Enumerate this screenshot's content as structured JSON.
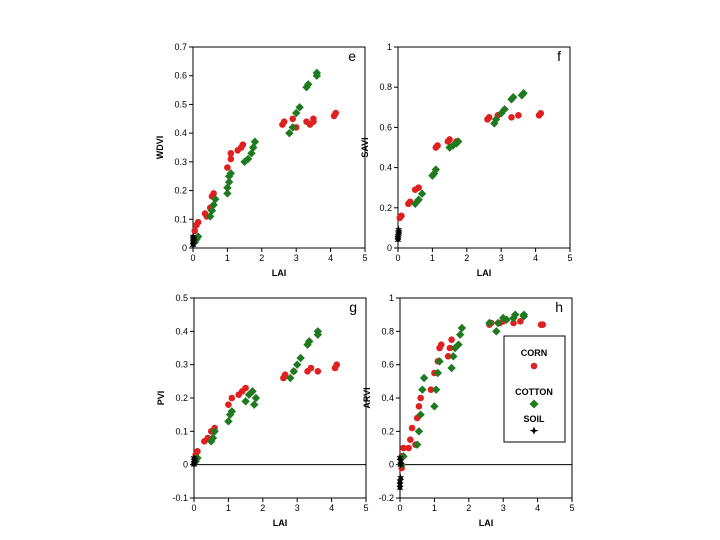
{
  "colors": {
    "corn": "#e02020",
    "cotton": "#1f7a1f",
    "soil": "#000000",
    "axis": "#000000"
  },
  "legend": {
    "corn": "CORN",
    "cotton": "COTTON",
    "soil": "SOIL"
  },
  "chart_data": [
    {
      "type": "scatter",
      "panel_label": "e",
      "xlabel": "LAI",
      "ylabel": "WDVI",
      "xlim": [
        0,
        5
      ],
      "ylim": [
        0,
        0.7
      ],
      "xticks": [
        0,
        1,
        2,
        3,
        4,
        5
      ],
      "yticks": [
        0,
        0.1,
        0.2,
        0.3,
        0.4,
        0.5,
        0.6,
        0.7
      ],
      "zero_line": false,
      "series": [
        {
          "name": "CORN",
          "marker": "circle",
          "x": [
            0.05,
            0.1,
            0.15,
            0.35,
            0.4,
            0.5,
            0.55,
            0.6,
            1.0,
            1.1,
            1.1,
            1.3,
            1.4,
            1.45,
            2.6,
            2.65,
            2.9,
            3.0,
            3.3,
            3.4,
            3.5,
            3.5,
            4.1,
            4.15
          ],
          "y": [
            0.06,
            0.08,
            0.09,
            0.12,
            0.11,
            0.14,
            0.18,
            0.19,
            0.28,
            0.31,
            0.33,
            0.34,
            0.35,
            0.36,
            0.43,
            0.44,
            0.45,
            0.42,
            0.44,
            0.43,
            0.45,
            0.44,
            0.46,
            0.47
          ]
        },
        {
          "name": "COTTON",
          "marker": "diamond",
          "x": [
            0.05,
            0.1,
            0.15,
            0.5,
            0.55,
            0.6,
            0.65,
            1.0,
            1.0,
            1.05,
            1.05,
            1.1,
            1.5,
            1.6,
            1.7,
            1.75,
            1.8,
            2.8,
            2.9,
            3.0,
            3.1,
            3.3,
            3.35,
            3.6,
            3.6
          ],
          "y": [
            0.02,
            0.03,
            0.04,
            0.11,
            0.13,
            0.15,
            0.17,
            0.19,
            0.21,
            0.23,
            0.25,
            0.26,
            0.3,
            0.31,
            0.33,
            0.35,
            0.37,
            0.4,
            0.42,
            0.47,
            0.49,
            0.56,
            0.57,
            0.6,
            0.61
          ]
        },
        {
          "name": "SOIL",
          "marker": "star",
          "x": [
            0.0,
            0.0,
            0.02,
            0.02,
            0.02,
            0.0
          ],
          "y": [
            0.01,
            0.02,
            0.025,
            0.03,
            0.035,
            0.04
          ]
        }
      ]
    },
    {
      "type": "scatter",
      "panel_label": "f",
      "xlabel": "LAI",
      "ylabel": "SAVI",
      "xlim": [
        0,
        5
      ],
      "ylim": [
        0,
        1
      ],
      "xticks": [
        0,
        1,
        2,
        3,
        4,
        5
      ],
      "yticks": [
        0,
        0.2,
        0.4,
        0.6,
        0.8,
        1
      ],
      "zero_line": false,
      "series": [
        {
          "name": "CORN",
          "marker": "circle",
          "x": [
            0.05,
            0.1,
            0.3,
            0.35,
            0.5,
            0.6,
            1.1,
            1.15,
            1.45,
            1.5,
            1.7,
            2.6,
            2.65,
            2.9,
            3.3,
            3.5,
            4.1,
            4.15
          ],
          "y": [
            0.15,
            0.16,
            0.22,
            0.23,
            0.29,
            0.3,
            0.5,
            0.51,
            0.53,
            0.54,
            0.53,
            0.64,
            0.65,
            0.66,
            0.65,
            0.66,
            0.66,
            0.67
          ]
        },
        {
          "name": "COTTON",
          "marker": "diamond",
          "x": [
            0.5,
            0.6,
            0.7,
            1.0,
            1.05,
            1.1,
            1.5,
            1.6,
            1.7,
            1.75,
            2.8,
            2.85,
            3.0,
            3.1,
            3.3,
            3.35,
            3.6,
            3.65
          ],
          "y": [
            0.22,
            0.24,
            0.27,
            0.36,
            0.37,
            0.39,
            0.5,
            0.51,
            0.52,
            0.53,
            0.62,
            0.64,
            0.67,
            0.69,
            0.74,
            0.75,
            0.76,
            0.77
          ]
        },
        {
          "name": "SOIL",
          "marker": "star",
          "x": [
            0.0,
            0.0,
            0.0,
            0.02,
            0.02,
            0.02
          ],
          "y": [
            0.04,
            0.05,
            0.06,
            0.07,
            0.08,
            0.09
          ]
        }
      ]
    },
    {
      "type": "scatter",
      "panel_label": "g",
      "xlabel": "LAI",
      "ylabel": "PVI",
      "xlim": [
        0,
        5
      ],
      "ylim": [
        -0.1,
        0.5
      ],
      "xticks": [
        0,
        1,
        2,
        3,
        4,
        5
      ],
      "yticks": [
        -0.1,
        0,
        0.1,
        0.2,
        0.3,
        0.4,
        0.5
      ],
      "zero_line": true,
      "series": [
        {
          "name": "CORN",
          "marker": "circle",
          "x": [
            0.05,
            0.1,
            0.3,
            0.4,
            0.5,
            0.6,
            1.0,
            1.1,
            1.3,
            1.4,
            1.5,
            2.6,
            2.65,
            2.9,
            3.3,
            3.4,
            3.6,
            4.1,
            4.15
          ],
          "y": [
            0.03,
            0.04,
            0.07,
            0.08,
            0.1,
            0.11,
            0.18,
            0.2,
            0.21,
            0.22,
            0.23,
            0.26,
            0.27,
            0.28,
            0.28,
            0.29,
            0.28,
            0.29,
            0.3
          ]
        },
        {
          "name": "COTTON",
          "marker": "diamond",
          "x": [
            0.05,
            0.1,
            0.5,
            0.55,
            0.6,
            1.0,
            1.05,
            1.1,
            1.5,
            1.6,
            1.7,
            1.75,
            1.8,
            2.8,
            2.9,
            3.0,
            3.1,
            3.3,
            3.35,
            3.6,
            3.6
          ],
          "y": [
            0.01,
            0.02,
            0.07,
            0.08,
            0.1,
            0.13,
            0.15,
            0.16,
            0.19,
            0.21,
            0.22,
            0.18,
            0.2,
            0.26,
            0.28,
            0.3,
            0.32,
            0.36,
            0.37,
            0.39,
            0.4
          ]
        },
        {
          "name": "SOIL",
          "marker": "star",
          "x": [
            0.0,
            0.0,
            0.02,
            0.02,
            0.0
          ],
          "y": [
            0.0,
            0.005,
            0.01,
            0.015,
            0.02
          ]
        }
      ]
    },
    {
      "type": "scatter",
      "panel_label": "h",
      "xlabel": "LAI",
      "ylabel": "ARVI",
      "xlim": [
        0,
        5
      ],
      "ylim": [
        -0.2,
        1
      ],
      "xticks": [
        0,
        1,
        2,
        3,
        4,
        5
      ],
      "yticks": [
        -0.2,
        0,
        0.2,
        0.4,
        0.6,
        0.8,
        1
      ],
      "zero_line": true,
      "series": [
        {
          "name": "CORN",
          "marker": "circle",
          "x": [
            0.05,
            0.05,
            0.1,
            0.25,
            0.3,
            0.35,
            0.45,
            0.5,
            0.55,
            0.6,
            0.9,
            1.0,
            1.1,
            1.15,
            1.2,
            1.4,
            1.45,
            1.5,
            2.6,
            2.65,
            2.9,
            3.0,
            3.3,
            3.5,
            4.1,
            4.15
          ],
          "y": [
            -0.02,
            0.05,
            0.1,
            0.1,
            0.15,
            0.22,
            0.12,
            0.28,
            0.35,
            0.4,
            0.45,
            0.55,
            0.62,
            0.7,
            0.72,
            0.65,
            0.7,
            0.75,
            0.84,
            0.85,
            0.85,
            0.86,
            0.85,
            0.86,
            0.84,
            0.84
          ]
        },
        {
          "name": "COTTON",
          "marker": "diamond",
          "x": [
            0.05,
            0.1,
            0.5,
            0.55,
            0.6,
            0.65,
            0.7,
            1.0,
            1.05,
            1.1,
            1.15,
            1.5,
            1.55,
            1.6,
            1.7,
            1.75,
            1.8,
            2.6,
            2.8,
            2.85,
            3.0,
            3.1,
            3.3,
            3.35,
            3.6,
            3.6
          ],
          "y": [
            0.0,
            0.05,
            0.12,
            0.2,
            0.3,
            0.45,
            0.52,
            0.35,
            0.45,
            0.55,
            0.62,
            0.58,
            0.65,
            0.7,
            0.72,
            0.78,
            0.82,
            0.85,
            0.8,
            0.85,
            0.88,
            0.87,
            0.88,
            0.9,
            0.89,
            0.9
          ]
        },
        {
          "name": "SOIL",
          "marker": "star",
          "x": [
            0.0,
            0.0,
            0.0,
            0.02,
            0.02,
            0.02,
            0.0
          ],
          "y": [
            -0.14,
            -0.12,
            -0.1,
            -0.08,
            0.0,
            0.02,
            0.04
          ]
        }
      ]
    }
  ]
}
